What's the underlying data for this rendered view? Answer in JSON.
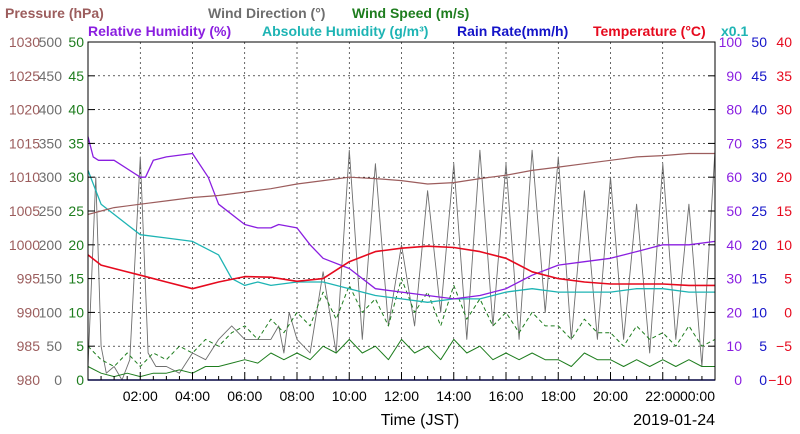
{
  "chart_data": {
    "type": "line",
    "legend": [
      [
        {
          "key": "pressure",
          "text": "Pressure (hPa)",
          "color": "#9c5d5d"
        },
        {
          "key": "wind_dir",
          "text": "Wind Direction (°)",
          "color": "#6e6e6e"
        },
        {
          "key": "wind_speed",
          "text": "Wind Speed (m/s)",
          "color": "#1e7d1e"
        }
      ],
      [
        {
          "key": "rh",
          "text": "Relative Humidity (%)",
          "color": "#8a1ee0"
        },
        {
          "key": "abs_hum",
          "text": "Absolute Humidity (g/m³)",
          "color": "#1eb4b4"
        },
        {
          "key": "rain",
          "text": "Rain Rate(mm/h)",
          "color": "#1414c8"
        },
        {
          "key": "temp",
          "text": "Temperature (°C)",
          "color": "#e60a1e"
        }
      ]
    ],
    "abs_hum_multiplier": "x0.1",
    "xlabel": "Time (JST)",
    "date": "2019-01-24",
    "x_range_hours": [
      0,
      24
    ],
    "x_tick_labels": [
      "02:00",
      "04:00",
      "06:00",
      "08:00",
      "10:00",
      "12:00",
      "14:00",
      "16:00",
      "18:00",
      "20:00",
      "22:00",
      "00:00"
    ],
    "axes": {
      "pressure": {
        "min": 980,
        "max": 1030,
        "color": "#9c5d5d",
        "ticks": [
          "980",
          "985",
          "990",
          "995",
          "1000",
          "1005",
          "1010",
          "1015",
          "1020",
          "1025",
          "1030"
        ]
      },
      "wind_dir": {
        "min": 0,
        "max": 500,
        "color": "#6e6e6e",
        "ticks": [
          "0",
          "50",
          "100",
          "150",
          "200",
          "250",
          "300",
          "350",
          "400",
          "450",
          "500"
        ]
      },
      "wind_speed": {
        "min": 0,
        "max": 50,
        "color": "#1e7d1e",
        "ticks": [
          "0",
          "5",
          "10",
          "15",
          "20",
          "25",
          "30",
          "35",
          "40",
          "45",
          "50"
        ]
      },
      "humidity": {
        "min": 0,
        "max": 100,
        "color": "#8a1ee0",
        "ticks": [
          "0",
          "10",
          "20",
          "30",
          "40",
          "50",
          "60",
          "70",
          "80",
          "90",
          "100"
        ]
      },
      "rain": {
        "min": 0,
        "max": 50,
        "color": "#1414c8",
        "ticks": [
          "0",
          "5",
          "10",
          "15",
          "20",
          "25",
          "30",
          "35",
          "40",
          "45",
          "50"
        ]
      },
      "temperature": {
        "min": -10,
        "max": 40,
        "color": "#e60a1e",
        "ticks": [
          "−10",
          "−5",
          "0",
          "5",
          "10",
          "15",
          "20",
          "25",
          "30",
          "35",
          "40"
        ]
      }
    },
    "grid": true,
    "series": [
      {
        "key": "pressure",
        "name": "Pressure (hPa)",
        "axis": "pressure",
        "x": [
          0,
          0.5,
          1,
          2,
          3,
          4,
          5,
          6,
          7,
          8,
          9,
          10,
          11,
          12,
          13,
          14,
          15,
          16,
          17,
          18,
          19,
          20,
          21,
          22,
          23,
          24
        ],
        "y": [
          1004.5,
          1005,
          1005.5,
          1006,
          1006.5,
          1007,
          1007.3,
          1007.8,
          1008.3,
          1009,
          1009.5,
          1010,
          1009.8,
          1009.5,
          1009,
          1009.2,
          1009.8,
          1010.3,
          1011,
          1011.5,
          1012,
          1012.5,
          1013,
          1013.2,
          1013.5,
          1013.5
        ]
      },
      {
        "key": "rh",
        "name": "Relative Humidity (%)",
        "axis": "humidity",
        "x": [
          0,
          0.2,
          0.4,
          1,
          2,
          2.2,
          2.5,
          3,
          4,
          4.6,
          5,
          6,
          6.5,
          7,
          7.3,
          8,
          8.5,
          9,
          10,
          11,
          12,
          13,
          14,
          15,
          16,
          17,
          18,
          19,
          20,
          21,
          22,
          23,
          24
        ],
        "y": [
          72,
          66,
          65,
          65,
          60,
          60,
          65,
          66,
          67,
          60,
          52,
          46,
          45,
          45,
          46,
          45,
          40,
          36,
          33,
          27,
          26,
          25,
          24,
          25,
          27,
          31,
          34,
          35,
          36,
          38,
          40,
          40,
          41
        ]
      },
      {
        "key": "abs_hum",
        "name": "Absolute Humidity (g/m³)",
        "axis": "humidity",
        "x": [
          0,
          0.5,
          1,
          2,
          3,
          4,
          5,
          5.5,
          6,
          6.5,
          7,
          8,
          9,
          10,
          11,
          12,
          13,
          14,
          15,
          16,
          17,
          18,
          19,
          20,
          21,
          22,
          23,
          24
        ],
        "y": [
          62,
          52,
          49,
          43,
          42,
          41,
          37,
          30,
          28,
          29,
          28,
          29,
          29,
          27,
          25,
          24,
          23,
          24,
          24,
          26,
          27,
          26,
          26,
          26,
          27,
          27,
          26,
          26
        ]
      },
      {
        "key": "temp",
        "name": "Temperature (°C)",
        "axis": "temperature",
        "x": [
          0,
          0.5,
          1,
          2,
          3,
          4,
          5,
          6,
          7,
          8,
          9,
          10,
          11,
          12,
          13,
          14,
          15,
          16,
          17,
          18,
          19,
          20,
          21,
          22,
          23,
          24
        ],
        "y": [
          8.5,
          7,
          6.5,
          5.5,
          4.5,
          3.5,
          4.5,
          5.3,
          5.2,
          4.6,
          5,
          7.5,
          9,
          9.5,
          9.8,
          9.6,
          9,
          8,
          6,
          5,
          4.5,
          4.2,
          4.2,
          4.2,
          4,
          4
        ]
      },
      {
        "key": "wind_dir",
        "name": "Wind Direction (°)",
        "axis": "wind_dir",
        "x": [
          0,
          0.3,
          0.5,
          0.7,
          1,
          1.3,
          1.6,
          2,
          2.3,
          2.6,
          3,
          3.5,
          4,
          4.5,
          5,
          5.5,
          6,
          6.5,
          7,
          7.3,
          7.5,
          7.7,
          8,
          8.5,
          9,
          9.5,
          10,
          10.5,
          11,
          11.5,
          12,
          12.5,
          13,
          13.5,
          14,
          14.5,
          15,
          15.5,
          16,
          16.5,
          17,
          17.5,
          18,
          18.5,
          19,
          19.5,
          20,
          20.5,
          21,
          21.5,
          22,
          22.5,
          23,
          23.5,
          24
        ],
        "y": [
          20,
          300,
          50,
          10,
          20,
          0,
          30,
          330,
          40,
          20,
          20,
          10,
          40,
          30,
          60,
          80,
          60,
          60,
          60,
          80,
          40,
          100,
          60,
          40,
          160,
          40,
          340,
          60,
          320,
          80,
          200,
          80,
          280,
          100,
          320,
          60,
          340,
          80,
          320,
          60,
          340,
          100,
          330,
          60,
          280,
          60,
          300,
          60,
          260,
          40,
          320,
          60,
          260,
          20,
          340
        ]
      },
      {
        "key": "wind_speed",
        "name": "Wind Speed (m/s)",
        "axis": "wind_speed",
        "x": [
          0,
          0.5,
          1,
          1.5,
          2,
          2.5,
          3,
          3.5,
          4,
          4.5,
          5,
          5.5,
          6,
          6.5,
          7,
          7.5,
          8,
          8.5,
          9,
          9.5,
          10,
          10.5,
          11,
          11.5,
          12,
          12.5,
          13,
          13.5,
          14,
          14.5,
          15,
          15.5,
          16,
          16.5,
          17,
          17.5,
          18,
          18.5,
          19,
          19.5,
          20,
          20.5,
          21,
          21.5,
          22,
          22.5,
          23,
          23.5,
          24
        ],
        "y": [
          2,
          1,
          0.5,
          1,
          0.5,
          1,
          1,
          1.5,
          1,
          2,
          2,
          2.5,
          3,
          2.5,
          4,
          3,
          4,
          3,
          5,
          4,
          6,
          4,
          5,
          3,
          6,
          4,
          5,
          3,
          6,
          4,
          5,
          3,
          4,
          3,
          4,
          3,
          3,
          2,
          4,
          3,
          3,
          2,
          3,
          2,
          3,
          2,
          3,
          2,
          2
        ]
      },
      {
        "key": "wind_gust",
        "name": "Wind Speed (m/s)",
        "axis": "wind_speed",
        "dashed": true,
        "x": [
          0,
          0.5,
          1,
          1.5,
          2,
          2.5,
          3,
          3.5,
          4,
          4.5,
          5,
          5.5,
          6,
          6.5,
          7,
          7.5,
          8,
          8.5,
          9,
          9.5,
          10,
          10.5,
          11,
          11.5,
          12,
          12.5,
          13,
          13.5,
          14,
          14.5,
          15,
          15.5,
          16,
          16.5,
          17,
          17.5,
          18,
          18.5,
          19,
          19.5,
          20,
          20.5,
          21,
          21.5,
          22,
          22.5,
          23,
          23.5,
          24
        ],
        "y": [
          5,
          3,
          2,
          4,
          2,
          4,
          3,
          5,
          4,
          6,
          5,
          7,
          8,
          6,
          9,
          7,
          10,
          8,
          13,
          9,
          14,
          10,
          12,
          8,
          15,
          10,
          13,
          8,
          14,
          9,
          12,
          8,
          10,
          7,
          10,
          8,
          8,
          6,
          9,
          7,
          7,
          5,
          8,
          6,
          7,
          5,
          8,
          5,
          6
        ]
      },
      {
        "key": "rain",
        "name": "Rain Rate(mm/h)",
        "axis": "rain",
        "x": [
          0,
          24
        ],
        "y": [
          0,
          0
        ]
      }
    ]
  }
}
